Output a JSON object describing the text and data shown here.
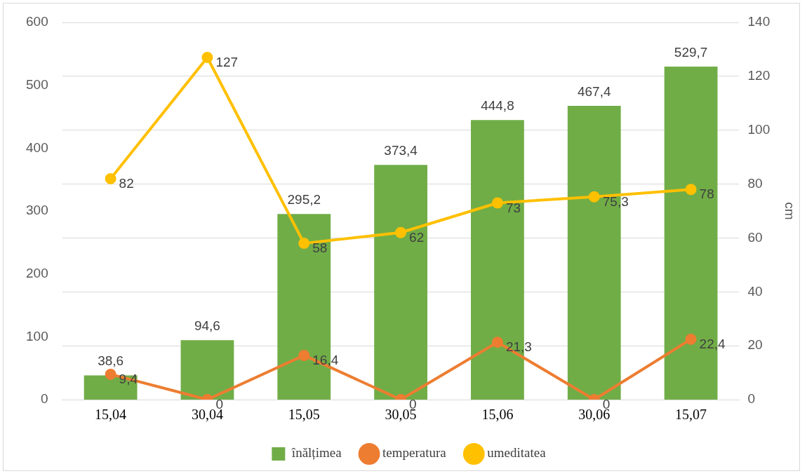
{
  "chart_data": {
    "type": "bar",
    "categories": [
      "15,04",
      "30,04",
      "15,05",
      "30,05",
      "15,06",
      "30,06",
      "15,07"
    ],
    "series": [
      {
        "name": "înălțimea",
        "color": "#70ad47",
        "values": [
          38.6,
          94.6,
          295.2,
          373.4,
          444.8,
          467.4,
          529.7
        ],
        "value_labels": [
          "38,6",
          "94,6",
          "295,2",
          "373,4",
          "444,8",
          "467,4",
          "529,7"
        ]
      },
      {
        "name": "temperatura",
        "type": "line",
        "axis": "y2",
        "color": "#ed7d31",
        "values": [
          9.4,
          0,
          16.4,
          0,
          21.3,
          0,
          22.4
        ],
        "value_labels": [
          "9,4",
          "0",
          "16,4",
          "0",
          "21,3",
          "0",
          "22,4"
        ]
      },
      {
        "name": "umeditatea",
        "type": "line",
        "axis": "y2",
        "color": "#ffc000",
        "values": [
          82,
          127,
          58,
          62,
          73,
          75.3,
          78
        ],
        "value_labels": [
          "82",
          "127",
          "58",
          "62",
          "73",
          "75,3",
          "78"
        ]
      }
    ],
    "ylim": [
      0,
      600
    ],
    "yticks": [
      0,
      100,
      200,
      300,
      400,
      500,
      600
    ],
    "y2lim": [
      0,
      140
    ],
    "y2ticks": [
      0,
      20,
      40,
      60,
      80,
      100,
      120,
      140
    ],
    "y2label": "cm",
    "grid": true,
    "legend": "bottom",
    "marker": "circle",
    "line_style": "solid"
  }
}
